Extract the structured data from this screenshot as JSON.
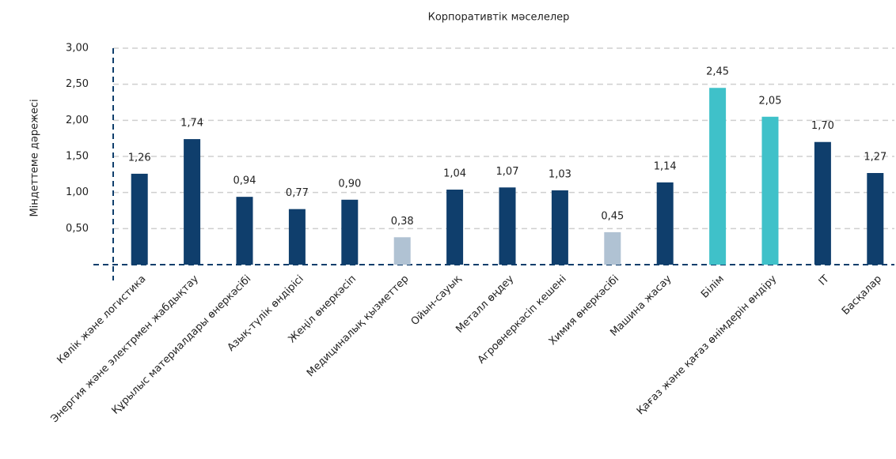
{
  "chart_data": {
    "type": "bar",
    "title": "Корпоративтік мәселелер",
    "y_label": "Міндеттеме дәрежесі",
    "categories": [
      "Көлік және логистика",
      "Энергия және электрмен жабдықтау",
      "Құрылыс материалдары өнеркәсібі",
      "Азық-түлік өндірісі",
      "Жеңіл өнеркәсіп",
      "Медициналық қызметтер",
      "Ойын-сауық",
      "Металл өңдеу",
      "Агроөнеркәсіп кешені",
      "Химия өнеркәсібі",
      "Машина жасау",
      "Білім",
      "Қағаз және қағаз өнімдерін өндіру",
      "IT",
      "Басқалар"
    ],
    "values": [
      1.26,
      1.74,
      0.94,
      0.77,
      0.9,
      0.38,
      1.04,
      1.07,
      1.03,
      0.45,
      1.14,
      2.45,
      2.05,
      1.7,
      1.27
    ],
    "value_labels": [
      "1,26",
      "1,74",
      "0,94",
      "0,77",
      "0,90",
      "0,38",
      "1,04",
      "1,07",
      "1,03",
      "0,45",
      "1,14",
      "2,45",
      "2,05",
      "1,70",
      "1,27"
    ],
    "colors": [
      "#0f3e6c",
      "#0f3e6c",
      "#0f3e6c",
      "#0f3e6c",
      "#0f3e6c",
      "#b0c2d3",
      "#0f3e6c",
      "#0f3e6c",
      "#0f3e6c",
      "#b0c2d3",
      "#0f3e6c",
      "#3fc1c9",
      "#3fc1c9",
      "#0f3e6c",
      "#0f3e6c"
    ],
    "ylim": [
      0,
      3
    ],
    "yticks": [
      {
        "value": 0.5,
        "label": "0,50"
      },
      {
        "value": 1,
        "label": "1,00"
      },
      {
        "value": 1.5,
        "label": "1,50"
      },
      {
        "value": 2,
        "label": "2,00"
      },
      {
        "value": 2.5,
        "label": "2,50"
      },
      {
        "value": 3,
        "label": "3,00"
      }
    ],
    "grid": true
  }
}
